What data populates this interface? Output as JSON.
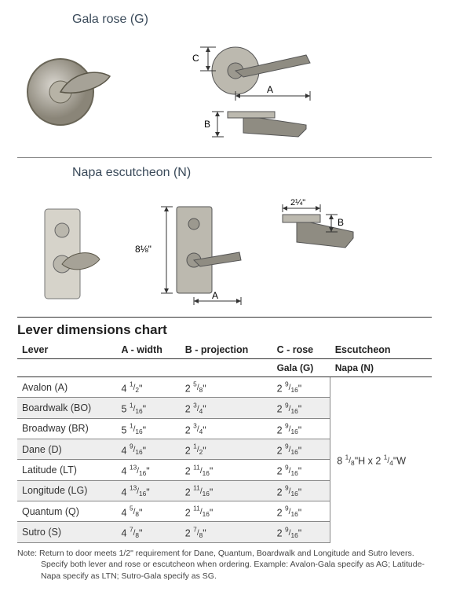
{
  "product1": {
    "title": "Gala rose (G)",
    "dim_a": "A",
    "dim_b": "B",
    "dim_c": "C"
  },
  "product2": {
    "title": "Napa escutcheon (N)",
    "dim_a": "A",
    "dim_b": "B",
    "dim_height": "8 1/8\"",
    "dim_width": "2 1/4\""
  },
  "chart": {
    "title": "Lever dimensions chart",
    "headers": {
      "lever": "Lever",
      "a": "A - width",
      "b": "B - projection",
      "c": "C - rose",
      "esc": "Escutcheon"
    },
    "subheaders": {
      "gala": "Gala (G)",
      "napa": "Napa (N)"
    },
    "escutcheon_size": "8 1/8\"H x 2 1/4\"W",
    "rows": [
      {
        "lever": "Avalon (A)",
        "a": "4 1/2\"",
        "b": "2 5/8\"",
        "c": "2 9/16\""
      },
      {
        "lever": "Boardwalk (BO)",
        "a": "5 1/16\"",
        "b": "2 3/4\"",
        "c": "2 9/16\""
      },
      {
        "lever": "Broadway (BR)",
        "a": "5 1/16\"",
        "b": "2 3/4\"",
        "c": "2 9/16\""
      },
      {
        "lever": "Dane (D)",
        "a": "4 9/16\"",
        "b": "2 1/2\"",
        "c": "2 9/16\""
      },
      {
        "lever": "Latitude (LT)",
        "a": "4 13/16\"",
        "b": "2 11/16\"",
        "c": "2 9/16\""
      },
      {
        "lever": "Longitude (LG)",
        "a": "4 13/16\"",
        "b": "2 11/16\"",
        "c": "2 9/16\""
      },
      {
        "lever": "Quantum (Q)",
        "a": "4 5/8\"",
        "b": "2 11/16\"",
        "c": "2 9/16\""
      },
      {
        "lever": "Sutro (S)",
        "a": "4 7/8\"",
        "b": "2 7/8\"",
        "c": "2 9/16\""
      }
    ],
    "note1": "Note: Return to door meets 1/2\" requirement for Dane, Quantum, Boardwalk and Longitude and Sutro levers.",
    "note2": "Specify both lever and rose or escutcheon when ordering. Example: Avalon-Gala specify as AG; Latitude-Napa specify as LTN; Sutro-Gala specify as SG."
  }
}
